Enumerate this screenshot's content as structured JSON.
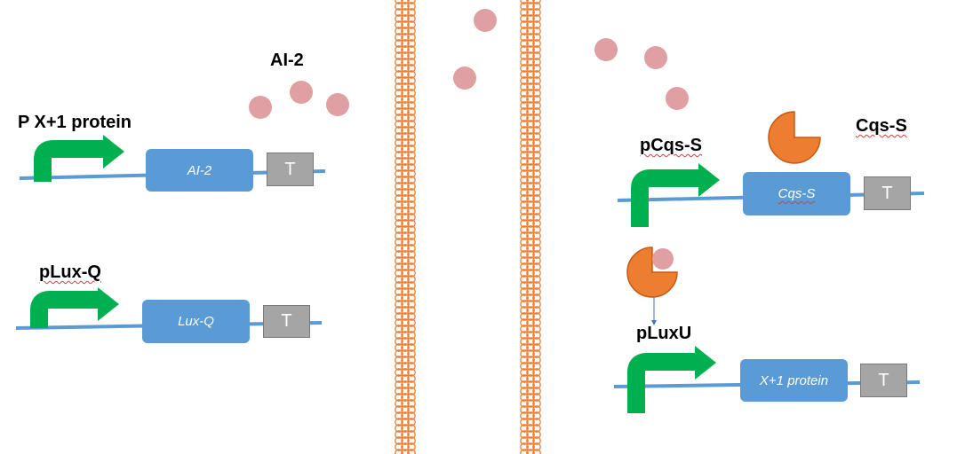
{
  "labels": {
    "ai2_signal": "AI-2",
    "promoter_left": "P X+1 protein",
    "plux_q": "pLux-Q",
    "pcqs_s": "pCqs-S",
    "cqs_s": "Cqs-S",
    "pluxu": "pLuxU"
  },
  "genes": {
    "ai2": "AI-2",
    "luxq": "Lux-Q",
    "cqss": "Cqs-S",
    "x1": "X+1 protein"
  },
  "terminator": "T",
  "colors": {
    "dna": "#5b9bd5",
    "promoter": "#00b050",
    "gene": "#5b9bd5",
    "terminator": "#a5a5a5",
    "membrane": "#ed7d31",
    "molecule": "#e0a0a3",
    "receptor": "#ed7d31",
    "arrow": "#4472c4"
  },
  "icons": {
    "promoter": "bent-arrow-icon",
    "signal_molecule": "circle-icon",
    "receptor": "pacman-icon"
  }
}
